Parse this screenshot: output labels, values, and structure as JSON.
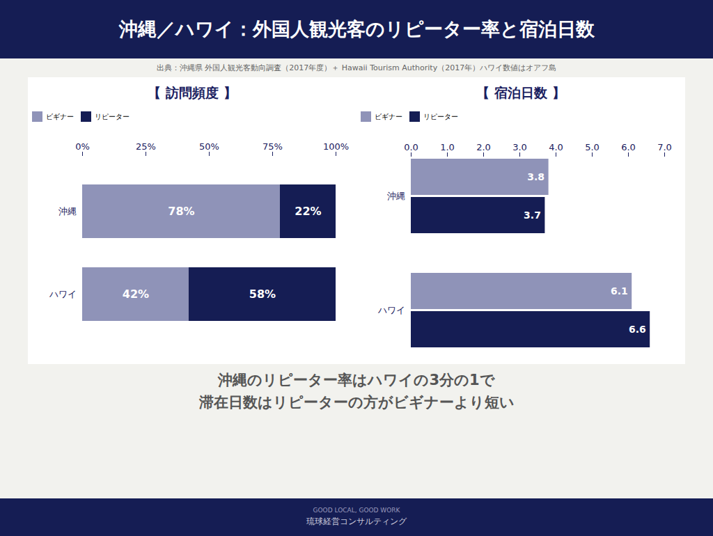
{
  "title": "沖縄／ハワイ：外国人観光客のリピーター率と宿泊日数",
  "subtitle": "出典：沖縄県 外国人観光客動向調査（2017年度）＋ Hawaii Tourism Authority（2017年）ハワイ数値はオアフ島",
  "annotations": [
    "沖縄のリピーター率はハワイの3分の1で",
    "滞在日数はリピーターの方がビギナーより短い",
    "GOOD LOCAL, GOOD WORK",
    "琉球経営コンサルティング"
  ],
  "chart_data": [
    {
      "type": "bar",
      "title": "【 訪問頻度 】",
      "orientation": "horizontal",
      "stacked": true,
      "categories": [
        "沖縄",
        "ハワイ"
      ],
      "series": [
        {
          "name": "ビギナー",
          "color": "#8f93b8",
          "values": [
            78,
            42
          ],
          "value_labels": [
            "78%",
            "42%"
          ]
        },
        {
          "name": "リピーター",
          "color": "#151d54",
          "values": [
            22,
            58
          ],
          "value_labels": [
            "22%",
            "58%"
          ]
        }
      ],
      "xlim": [
        0,
        100
      ],
      "xticks": [
        {
          "value": 0,
          "label": "0%"
        },
        {
          "value": 25,
          "label": "25%"
        },
        {
          "value": 50,
          "label": "50%"
        },
        {
          "value": 75,
          "label": "75%"
        },
        {
          "value": 100,
          "label": "100%"
        }
      ],
      "data_labels": true,
      "legend": "upper left",
      "grid": false
    },
    {
      "type": "bar",
      "title": "【 宿泊日数 】",
      "orientation": "horizontal",
      "stacked": false,
      "categories": [
        "沖縄",
        "ハワイ"
      ],
      "series": [
        {
          "name": "ビギナー",
          "color": "#8f93b8",
          "values": [
            3.8,
            6.1
          ]
        },
        {
          "name": "リピーター",
          "color": "#151d54",
          "values": [
            3.7,
            6.6
          ]
        }
      ],
      "xlim": [
        0,
        7.0
      ],
      "xticks": [
        {
          "value": 0,
          "label": "0.0"
        },
        {
          "value": 1,
          "label": "1.0"
        },
        {
          "value": 2,
          "label": "2.0"
        },
        {
          "value": 3,
          "label": "3.0"
        },
        {
          "value": 4,
          "label": "4.0"
        },
        {
          "value": 5,
          "label": "5.0"
        },
        {
          "value": 6,
          "label": "6.0"
        },
        {
          "value": 7,
          "label": "7.0"
        }
      ],
      "data_labels": true,
      "legend": "upper left",
      "grid": false
    }
  ]
}
